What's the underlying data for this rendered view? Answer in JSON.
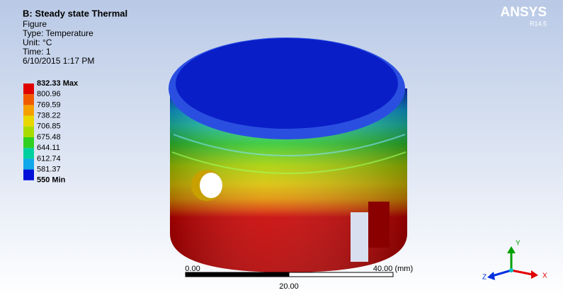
{
  "header": {
    "title": "B: Steady state Thermal",
    "lines": [
      "Figure",
      "Type: Temperature",
      "Unit: °C",
      "Time: 1",
      "6/10/2015 1:17 PM"
    ]
  },
  "legend": {
    "labels": [
      "832.33 Max",
      "800.96",
      "769.59",
      "738.22",
      "706.85",
      "675.48",
      "644.11",
      "612.74",
      "581.37",
      "550 Min"
    ],
    "colors": [
      "#e00000",
      "#f25a00",
      "#f5a000",
      "#e8d800",
      "#a8dc00",
      "#30d020",
      "#00d0a0",
      "#10a8e8",
      "#0010d8"
    ]
  },
  "logo": {
    "name": "ANSYS",
    "version": "R14.5"
  },
  "scale_bar": {
    "left": "0.00",
    "right": "40.00 (mm)",
    "middle": "20.00"
  },
  "triad": {
    "x": "X",
    "y": "Y",
    "z": "Z"
  }
}
